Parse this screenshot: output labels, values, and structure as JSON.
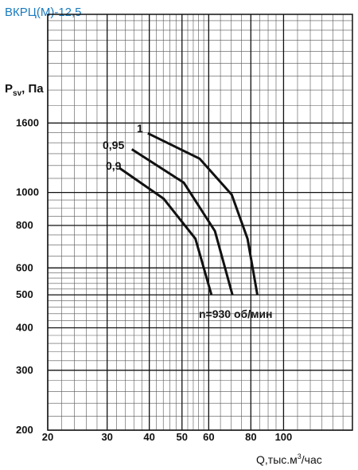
{
  "chart_data": {
    "type": "line",
    "title": "ВКРЦ(М)-12,5",
    "y_label": {
      "main": "P",
      "sub": "sv",
      "rest": ", Па"
    },
    "x_label": {
      "main": "Q,тыс.м",
      "sup": "3",
      "rest": "/час"
    },
    "annotation": "n=930 об/мин",
    "log_x": true,
    "log_y": true,
    "grid": true,
    "xlim": [
      20,
      160
    ],
    "ylim": [
      200,
      3340
    ],
    "xticks": [
      20,
      30,
      40,
      50,
      60,
      80,
      100
    ],
    "yticks": [
      200,
      300,
      400,
      500,
      600,
      800,
      1000,
      1600
    ],
    "x_minor_grid": [
      22,
      24,
      26,
      28,
      32,
      34,
      36,
      38,
      42,
      44,
      46,
      48,
      52,
      54,
      56,
      58,
      65,
      70,
      75,
      85,
      90,
      95,
      110,
      120,
      130,
      140,
      150
    ],
    "y_minor_grid": [
      220,
      240,
      260,
      280,
      320,
      340,
      360,
      380,
      420,
      440,
      460,
      480,
      520,
      540,
      560,
      580,
      650,
      700,
      750,
      850,
      900,
      950,
      1100,
      1200,
      1300,
      1400,
      1500,
      1800,
      2000,
      2200,
      2400,
      2600,
      2800,
      3000,
      3200
    ],
    "series": [
      {
        "name": "1",
        "color": "#111111",
        "x": [
          39.6,
          56.4,
          70.2,
          78.2,
          83.6
        ],
        "values": [
          1493,
          1257,
          985,
          731,
          501
        ]
      },
      {
        "name": "0,95",
        "color": "#111111",
        "x": [
          35.5,
          50.6,
          62.6,
          70.5
        ],
        "values": [
          1340,
          1069,
          770,
          501
        ]
      },
      {
        "name": "0,9",
        "color": "#111111",
        "x": [
          32.7,
          44.1,
          54.8,
          61.1
        ],
        "values": [
          1178,
          959,
          731,
          501
        ]
      }
    ]
  }
}
